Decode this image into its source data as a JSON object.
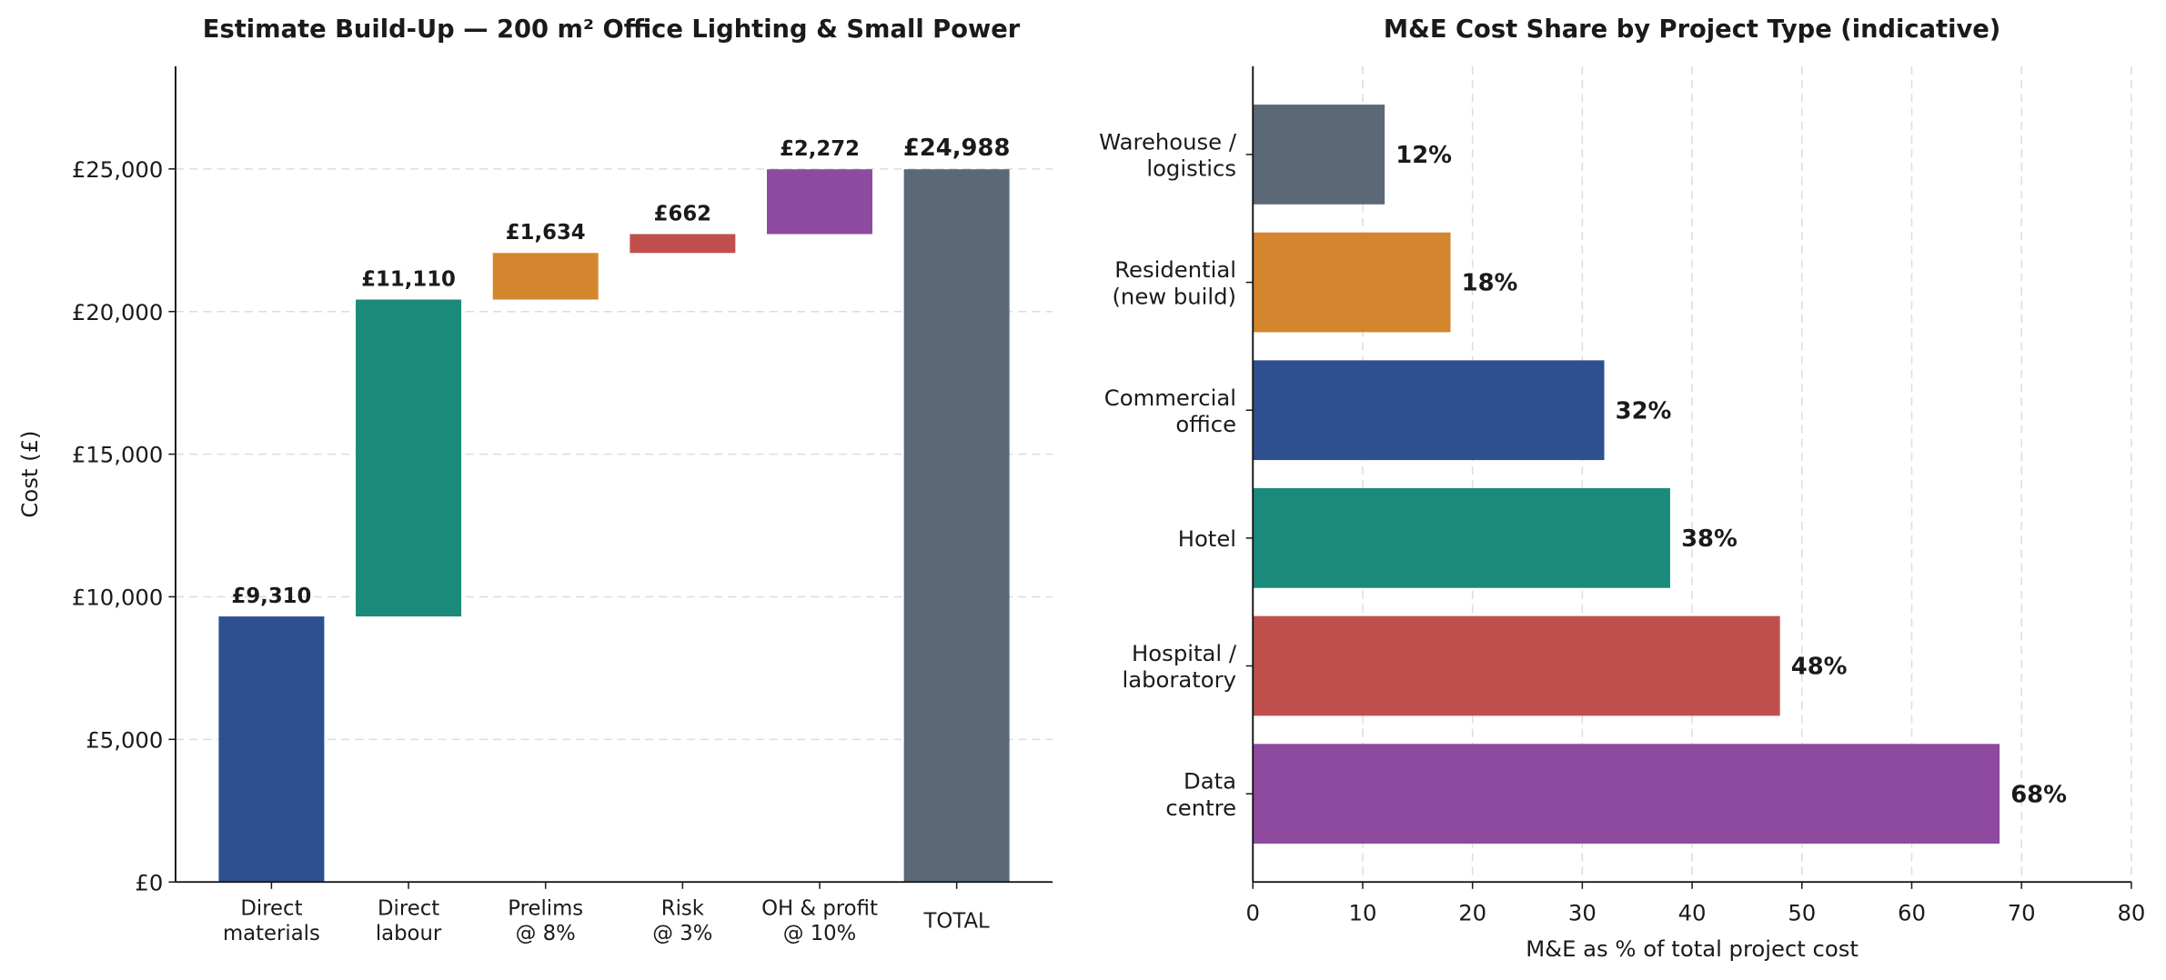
{
  "chart_data": [
    {
      "type": "waterfall",
      "title": "Estimate Build-Up — 200 m² Office Lighting & Small Power",
      "ylabel": "Cost (£)",
      "categories": [
        "Direct\nmaterials",
        "Direct\nlabour",
        "Prelims\n@ 8%",
        "Risk\n@ 3%",
        "OH & profit\n@ 10%",
        "TOTAL"
      ],
      "values": [
        9310,
        11110,
        1634,
        662,
        2272,
        24988
      ],
      "value_labels": [
        "£9,310",
        "£11,110",
        "£1,634",
        "£662",
        "£2,272",
        "£24,988"
      ],
      "measure": [
        "relative",
        "relative",
        "relative",
        "relative",
        "relative",
        "total"
      ],
      "colors": [
        "#2e5090",
        "#1a8a7a",
        "#d4862e",
        "#c0504d",
        "#8e4a9e",
        "#5a6878"
      ],
      "ylim": [
        0,
        28600
      ],
      "yticks": [
        {
          "value": 0,
          "label": "£0"
        },
        {
          "value": 5000,
          "label": "£5,000"
        },
        {
          "value": 10000,
          "label": "£10,000"
        },
        {
          "value": 15000,
          "label": "£15,000"
        },
        {
          "value": 20000,
          "label": "£20,000"
        },
        {
          "value": 25000,
          "label": "£25,000"
        }
      ],
      "grid": true
    },
    {
      "type": "hbar",
      "title": "M&E Cost Share by Project Type (indicative)",
      "xlabel": "M&E as % of total project cost",
      "categories": [
        "Warehouse /\nlogistics",
        "Residential\n(new build)",
        "Commercial\noffice",
        "Hotel",
        "Hospital /\nlaboratory",
        "Data\ncentre"
      ],
      "values": [
        12,
        18,
        32,
        38,
        48,
        68
      ],
      "value_labels": [
        "12%",
        "18%",
        "32%",
        "38%",
        "48%",
        "68%"
      ],
      "colors": [
        "#5a6878",
        "#d4862e",
        "#2e5090",
        "#1a8a7a",
        "#c0504d",
        "#8e4a9e"
      ],
      "xlim": [
        0,
        80
      ],
      "xticks": [
        0,
        10,
        20,
        30,
        40,
        50,
        60,
        70,
        80
      ],
      "grid": true
    }
  ]
}
